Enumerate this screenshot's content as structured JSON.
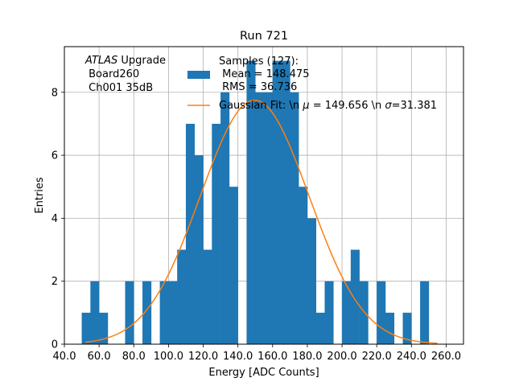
{
  "chart_data": {
    "type": "bar",
    "title": "Run 721",
    "xlabel": "Energy [ADC Counts]",
    "ylabel": "Entries",
    "xlim": [
      40,
      270
    ],
    "ylim": [
      0,
      9.45
    ],
    "xticks": [
      40,
      60,
      80,
      100,
      120,
      140,
      160,
      180,
      200,
      220,
      240,
      260
    ],
    "xtick_labels": [
      "40.0",
      "60.0",
      "80.0",
      "100.0",
      "120.0",
      "140.0",
      "160.0",
      "180.0",
      "200.0",
      "220.0",
      "240.0",
      "260.0"
    ],
    "yticks": [
      0,
      2,
      4,
      6,
      8
    ],
    "ytick_labels": [
      "0",
      "2",
      "4",
      "6",
      "8"
    ],
    "grid": true,
    "legend_position": "top-right",
    "annotation": {
      "italic": "ATLAS",
      "rest": " Upgrade",
      "line2": " Board260",
      "line3": " Ch001 35dB"
    },
    "bin_width": 5,
    "histogram": {
      "name": "Samples (127):\n Mean = 148.475\n RMS = 36.736",
      "color": "#1f77b4",
      "bins": [
        {
          "x": 50,
          "count": 1
        },
        {
          "x": 55,
          "count": 2
        },
        {
          "x": 60,
          "count": 1
        },
        {
          "x": 75,
          "count": 2
        },
        {
          "x": 85,
          "count": 2
        },
        {
          "x": 95,
          "count": 2
        },
        {
          "x": 100,
          "count": 2
        },
        {
          "x": 105,
          "count": 3
        },
        {
          "x": 110,
          "count": 7
        },
        {
          "x": 115,
          "count": 6
        },
        {
          "x": 120,
          "count": 3
        },
        {
          "x": 125,
          "count": 7
        },
        {
          "x": 130,
          "count": 8
        },
        {
          "x": 135,
          "count": 5
        },
        {
          "x": 145,
          "count": 9
        },
        {
          "x": 150,
          "count": 8
        },
        {
          "x": 155,
          "count": 8
        },
        {
          "x": 160,
          "count": 9
        },
        {
          "x": 165,
          "count": 9
        },
        {
          "x": 170,
          "count": 8
        },
        {
          "x": 175,
          "count": 5
        },
        {
          "x": 180,
          "count": 4
        },
        {
          "x": 185,
          "count": 1
        },
        {
          "x": 190,
          "count": 2
        },
        {
          "x": 200,
          "count": 2
        },
        {
          "x": 205,
          "count": 3
        },
        {
          "x": 210,
          "count": 2
        },
        {
          "x": 220,
          "count": 2
        },
        {
          "x": 225,
          "count": 1
        },
        {
          "x": 235,
          "count": 1
        },
        {
          "x": 245,
          "count": 2
        }
      ]
    },
    "fit": {
      "name": "Gaussian Fit: \\n $\\mu$ = 149.656 \\n $\\sigma$=31.381",
      "legend_prefix": "Gaussian Fit: \\n ",
      "legend_mu": "μ",
      "legend_mid": " = 149.656 \\n ",
      "legend_sigma": "σ",
      "legend_suffix": "=31.381",
      "color": "#ff7f0e",
      "mu": 149.656,
      "sigma": 31.381,
      "amplitude": 7.75,
      "x_range": [
        52,
        255
      ]
    }
  }
}
